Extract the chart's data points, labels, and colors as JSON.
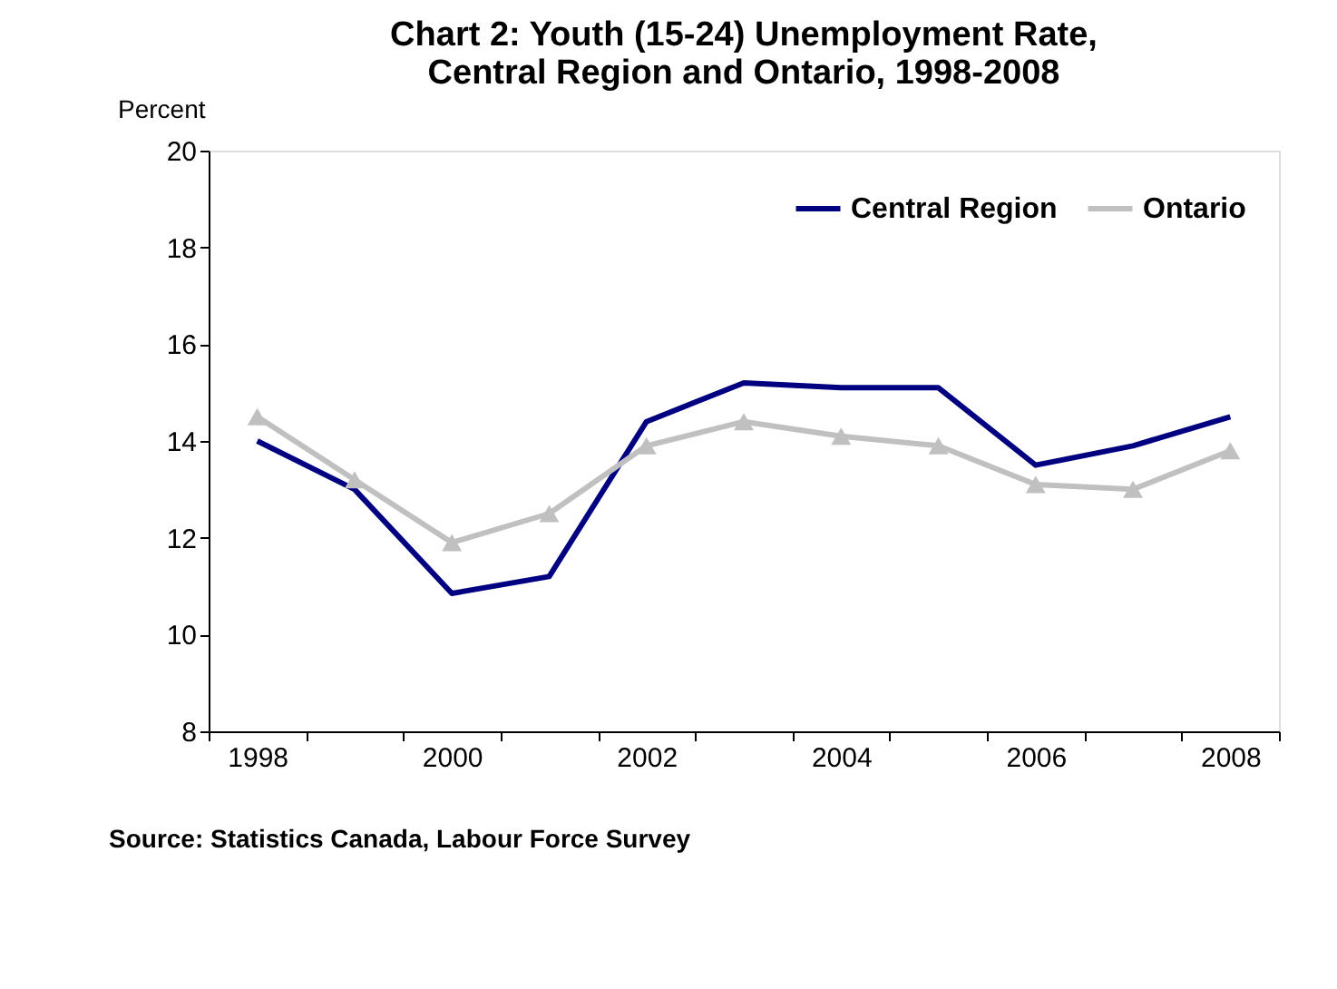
{
  "chart_data": {
    "type": "line",
    "title": [
      "Chart 2: Youth (15-24) Unemployment Rate,",
      "Central Region and Ontario, 1998-2008"
    ],
    "ylabel": "Percent",
    "categories": [
      "1998",
      null,
      "2000",
      null,
      "2002",
      null,
      "2004",
      null,
      "2006",
      null,
      "2008"
    ],
    "series": [
      {
        "name": "Central Region",
        "color": "#000080",
        "marker": "none",
        "values": [
          14.0,
          13.0,
          10.85,
          11.2,
          14.4,
          15.2,
          15.1,
          15.1,
          13.5,
          13.9,
          14.5
        ]
      },
      {
        "name": "Ontario",
        "color": "#c0c0c0",
        "marker": "triangle",
        "values": [
          14.5,
          13.2,
          11.9,
          12.5,
          13.9,
          14.4,
          14.1,
          13.9,
          13.1,
          13.0,
          13.8
        ]
      }
    ],
    "ylim": [
      8,
      20
    ],
    "yticks": [
      8,
      10,
      12,
      14,
      16,
      18,
      20
    ],
    "grid": false,
    "legend": "top right",
    "annotations": [
      "Source: Statistics Canada, Labour Force Survey"
    ]
  }
}
